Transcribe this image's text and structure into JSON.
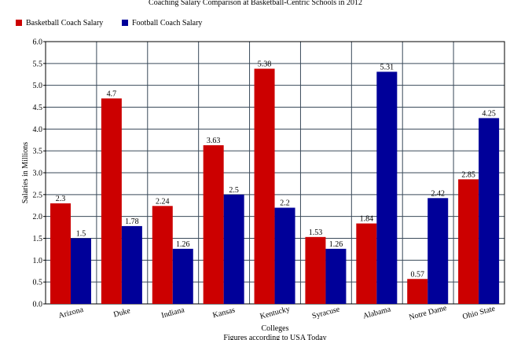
{
  "chart_data": {
    "type": "bar",
    "title": "Coaching Salary Comparison at Basketball-Centric Schools in 2012",
    "x_label": "Colleges",
    "x_sublabel": "Figures according to USA Today",
    "y_label": "Salaries in Millions",
    "categories": [
      "Arizona",
      "Duke",
      "Indiana",
      "Kansas",
      "Kentucky",
      "Syracuse",
      "Alabama",
      "Notre Dame",
      "Ohio State"
    ],
    "series": [
      {
        "name": "Basketball Coach Salary",
        "color": "#cc0000",
        "values": [
          2.3,
          4.7,
          2.24,
          3.63,
          5.38,
          1.53,
          1.84,
          0.57,
          2.85
        ]
      },
      {
        "name": "Football Coach Salary",
        "color": "#000099",
        "values": [
          1.5,
          1.78,
          1.26,
          2.5,
          2.2,
          1.26,
          5.31,
          2.42,
          4.25
        ]
      }
    ],
    "ylim": [
      0,
      6
    ],
    "yticks": [
      {
        "value": 0,
        "label": "0.0"
      },
      0.5,
      {
        "value": 1,
        "label": "1.0"
      },
      1.5,
      {
        "value": 2,
        "label": "2.0"
      },
      2.5,
      {
        "value": 3,
        "label": "3.0"
      },
      3.5,
      {
        "value": 4,
        "label": "4.0"
      },
      4.5,
      {
        "value": 5,
        "label": "5.0"
      },
      5.5,
      {
        "value": 6,
        "label": "6.0"
      }
    ],
    "grid": true,
    "legend": "top-left"
  }
}
